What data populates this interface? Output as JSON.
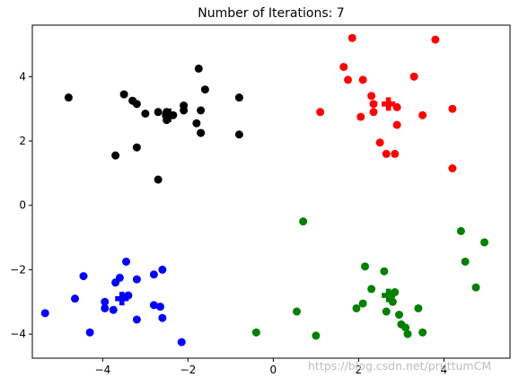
{
  "chart_data": {
    "type": "scatter",
    "title": "Number of Iterations: 7",
    "xlabel": "",
    "ylabel": "",
    "xlim": [
      -5.65,
      5.55
    ],
    "ylim": [
      -4.75,
      5.6
    ],
    "xticks": [
      -4,
      -2,
      0,
      2,
      4
    ],
    "yticks": [
      -4,
      -2,
      0,
      2,
      4
    ],
    "grid": false,
    "series": [
      {
        "color": "#000000",
        "points": [
          [
            -4.8,
            3.35
          ],
          [
            -3.7,
            1.55
          ],
          [
            -3.5,
            3.45
          ],
          [
            -3.3,
            3.25
          ],
          [
            -3.2,
            3.15
          ],
          [
            -3.2,
            1.8
          ],
          [
            -3.0,
            2.85
          ],
          [
            -2.7,
            2.9
          ],
          [
            -2.7,
            0.8
          ],
          [
            -2.5,
            2.9
          ],
          [
            -2.5,
            2.65
          ],
          [
            -2.35,
            2.8
          ],
          [
            -2.1,
            3.1
          ],
          [
            -2.1,
            2.95
          ],
          [
            -1.8,
            2.55
          ],
          [
            -1.75,
            4.25
          ],
          [
            -1.7,
            2.95
          ],
          [
            -1.7,
            2.25
          ],
          [
            -1.6,
            3.6
          ],
          [
            -0.8,
            3.35
          ],
          [
            -0.8,
            2.2
          ]
        ],
        "centroid": [
          -2.45,
          2.8
        ]
      },
      {
        "color": "#ff0000",
        "points": [
          [
            1.1,
            2.9
          ],
          [
            1.65,
            4.3
          ],
          [
            1.75,
            3.9
          ],
          [
            1.85,
            5.2
          ],
          [
            2.05,
            2.75
          ],
          [
            2.1,
            3.9
          ],
          [
            2.3,
            3.4
          ],
          [
            2.35,
            3.15
          ],
          [
            2.35,
            2.9
          ],
          [
            2.5,
            1.95
          ],
          [
            2.65,
            1.6
          ],
          [
            2.85,
            1.6
          ],
          [
            2.9,
            3.05
          ],
          [
            2.9,
            2.5
          ],
          [
            3.3,
            4.0
          ],
          [
            3.5,
            2.8
          ],
          [
            3.8,
            5.15
          ],
          [
            4.2,
            3.0
          ],
          [
            4.2,
            1.15
          ]
        ],
        "centroid": [
          2.7,
          3.15
        ]
      },
      {
        "color": "#0000ff",
        "points": [
          [
            -5.35,
            -3.35
          ],
          [
            -4.65,
            -2.9
          ],
          [
            -4.45,
            -2.2
          ],
          [
            -4.3,
            -3.95
          ],
          [
            -3.95,
            -3.0
          ],
          [
            -3.95,
            -3.2
          ],
          [
            -3.75,
            -3.25
          ],
          [
            -3.7,
            -2.4
          ],
          [
            -3.6,
            -2.25
          ],
          [
            -3.45,
            -1.75
          ],
          [
            -3.4,
            -2.8
          ],
          [
            -3.2,
            -2.3
          ],
          [
            -3.2,
            -3.55
          ],
          [
            -2.8,
            -2.15
          ],
          [
            -2.8,
            -3.1
          ],
          [
            -2.65,
            -3.15
          ],
          [
            -2.6,
            -2.0
          ],
          [
            -2.6,
            -3.5
          ],
          [
            -2.15,
            -4.25
          ]
        ],
        "centroid": [
          -3.55,
          -2.9
        ]
      },
      {
        "color": "#008000",
        "points": [
          [
            -0.4,
            -3.95
          ],
          [
            0.55,
            -3.3
          ],
          [
            0.7,
            -0.5
          ],
          [
            1.0,
            -4.05
          ],
          [
            1.95,
            -3.2
          ],
          [
            2.1,
            -3.05
          ],
          [
            2.15,
            -1.9
          ],
          [
            2.3,
            -2.6
          ],
          [
            2.6,
            -2.05
          ],
          [
            2.65,
            -3.3
          ],
          [
            2.8,
            -3.0
          ],
          [
            2.85,
            -2.7
          ],
          [
            2.95,
            -3.4
          ],
          [
            3.0,
            -3.7
          ],
          [
            3.1,
            -3.8
          ],
          [
            3.15,
            -4.0
          ],
          [
            3.4,
            -3.2
          ],
          [
            3.5,
            -3.95
          ],
          [
            4.4,
            -0.8
          ],
          [
            4.5,
            -1.75
          ],
          [
            4.75,
            -2.55
          ],
          [
            4.95,
            -1.15
          ]
        ],
        "centroid": [
          2.7,
          -2.8
        ]
      }
    ]
  },
  "watermark": "https://blog.csdn.net/pruttumCM"
}
